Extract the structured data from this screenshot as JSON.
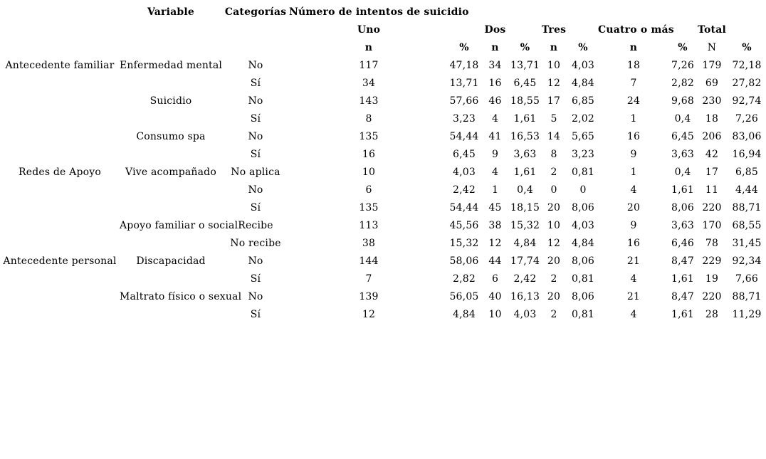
{
  "colors": {
    "background": "#ffffff",
    "text": "#000000"
  },
  "table": {
    "headers": {
      "variable": "Variable",
      "categorias": "Categorías",
      "intentos": "Número de intentos de suicidio",
      "uno": "Uno",
      "dos": "Dos",
      "tres": "Tres",
      "cuatro": "Cuatro o más",
      "total": "Total",
      "n": "n",
      "pct": "%",
      "n_total": "N"
    },
    "rows": [
      {
        "group": "Antecedente familiar",
        "variable": "Enfermedad mental",
        "categoria": "No",
        "values": [
          "117",
          "47,18",
          "34",
          "13,71",
          "10",
          "4,03",
          "18",
          "7,26",
          "179",
          "72,18"
        ]
      },
      {
        "group": "",
        "variable": "",
        "categoria": "Sí",
        "values": [
          "34",
          "13,71",
          "16",
          "6,45",
          "12",
          "4,84",
          "7",
          "2,82",
          "69",
          "27,82"
        ]
      },
      {
        "group": "",
        "variable": "Suicidio",
        "categoria": "No",
        "values": [
          "143",
          "57,66",
          "46",
          "18,55",
          "17",
          "6,85",
          "24",
          "9,68",
          "230",
          "92,74"
        ]
      },
      {
        "group": "",
        "variable": "",
        "categoria": "Sí",
        "values": [
          "8",
          "3,23",
          "4",
          "1,61",
          "5",
          "2,02",
          "1",
          "0,4",
          "18",
          "7,26"
        ]
      },
      {
        "group": "",
        "variable": "Consumo spa",
        "categoria": "No",
        "values": [
          "135",
          "54,44",
          "41",
          "16,53",
          "14",
          "5,65",
          "16",
          "6,45",
          "206",
          "83,06"
        ]
      },
      {
        "group": "",
        "variable": "",
        "categoria": "Sí",
        "values": [
          "16",
          "6,45",
          "9",
          "3,63",
          "8",
          "3,23",
          "9",
          "3,63",
          "42",
          "16,94"
        ]
      },
      {
        "group": "Redes de Apoyo",
        "variable": "Vive acompañado",
        "categoria": "No aplica",
        "values": [
          "10",
          "4,03",
          "4",
          "1,61",
          "2",
          "0,81",
          "1",
          "0,4",
          "17",
          "6,85"
        ]
      },
      {
        "group": "",
        "variable": "",
        "categoria": "No",
        "values": [
          "6",
          "2,42",
          "1",
          "0,4",
          "0",
          "0",
          "4",
          "1,61",
          "11",
          "4,44"
        ]
      },
      {
        "group": "",
        "variable": "",
        "categoria": "Sí",
        "values": [
          "135",
          "54,44",
          "45",
          "18,15",
          "20",
          "8,06",
          "20",
          "8,06",
          "220",
          "88,71"
        ]
      },
      {
        "group": "",
        "variable": "Apoyo familiar o social",
        "categoria": "Recibe",
        "values": [
          "113",
          "45,56",
          "38",
          "15,32",
          "10",
          "4,03",
          "9",
          "3,63",
          "170",
          "68,55"
        ]
      },
      {
        "group": "",
        "variable": "",
        "categoria": "No recibe",
        "values": [
          "38",
          "15,32",
          "12",
          "4,84",
          "12",
          "4,84",
          "16",
          "6,46",
          "78",
          "31,45"
        ]
      },
      {
        "group": "Antecedente personal",
        "variable": "Discapacidad",
        "categoria": "No",
        "values": [
          "144",
          "58,06",
          "44",
          "17,74",
          "20",
          "8,06",
          "21",
          "8,47",
          "229",
          "92,34"
        ]
      },
      {
        "group": "",
        "variable": "",
        "categoria": "Sí",
        "values": [
          "7",
          "2,82",
          "6",
          "2,42",
          "2",
          "0,81",
          "4",
          "1,61",
          "19",
          "7,66"
        ]
      },
      {
        "group": "",
        "variable": "Maltrato físico o sexual",
        "categoria": "No",
        "values": [
          "139",
          "56,05",
          "40",
          "16,13",
          "20",
          "8,06",
          "21",
          "8,47",
          "220",
          "88,71"
        ]
      },
      {
        "group": "",
        "variable": "",
        "categoria": "Sí",
        "values": [
          "12",
          "4,84",
          "10",
          "4,03",
          "2",
          "0,81",
          "4",
          "1,61",
          "28",
          "11,29"
        ]
      }
    ]
  }
}
